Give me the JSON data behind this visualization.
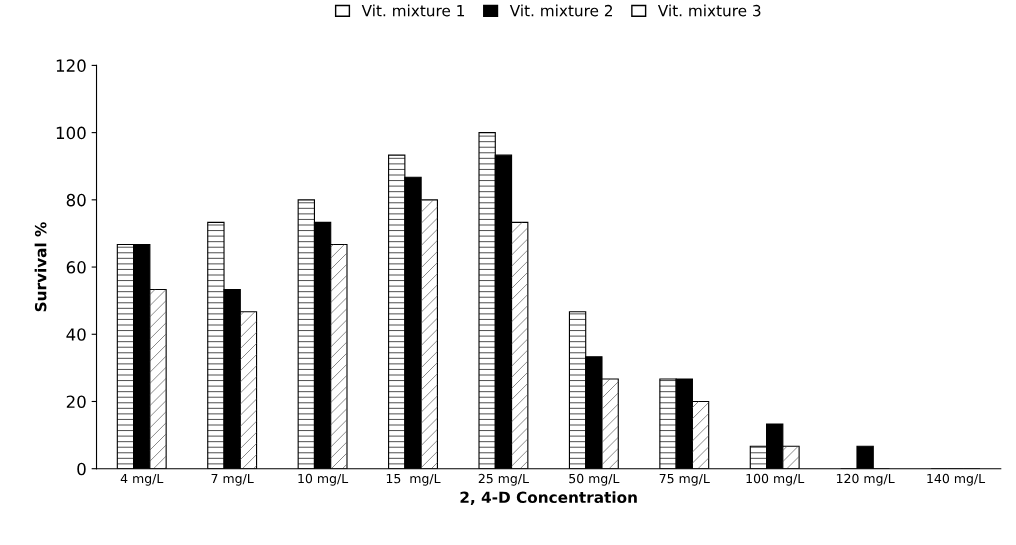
{
  "chart_data": {
    "type": "bar",
    "xlabel": "2, 4-D Concentration",
    "ylabel": "Survival %",
    "categories": [
      "4 mg/L",
      "7 mg/L",
      "10 mg/L",
      "15  mg/L",
      "25 mg/L",
      "50 mg/L",
      "75 mg/L",
      "100 mg/L",
      "120 mg/L",
      "140 mg/L"
    ],
    "series": [
      {
        "name": "Vit. mixture 1",
        "color": "#ffffff",
        "values": [
          66.7,
          73.3,
          80,
          93.3,
          100,
          46.7,
          26.7,
          6.7,
          0,
          0
        ]
      },
      {
        "name": "Vit. mixture 2",
        "color": "#000000",
        "values": [
          66.7,
          53.3,
          73.3,
          86.7,
          93.3,
          33.3,
          26.7,
          13.3,
          6.7,
          0
        ]
      },
      {
        "name": "Vit. mixture 3",
        "color": "#ffffff",
        "values": [
          53.3,
          46.7,
          66.7,
          80,
          73.3,
          26.7,
          20,
          6.7,
          0,
          0
        ]
      }
    ],
    "ylim": [
      0,
      120
    ],
    "yticks": [
      0,
      20,
      40,
      60,
      80,
      100,
      120
    ],
    "grid": false,
    "legend": "top"
  }
}
